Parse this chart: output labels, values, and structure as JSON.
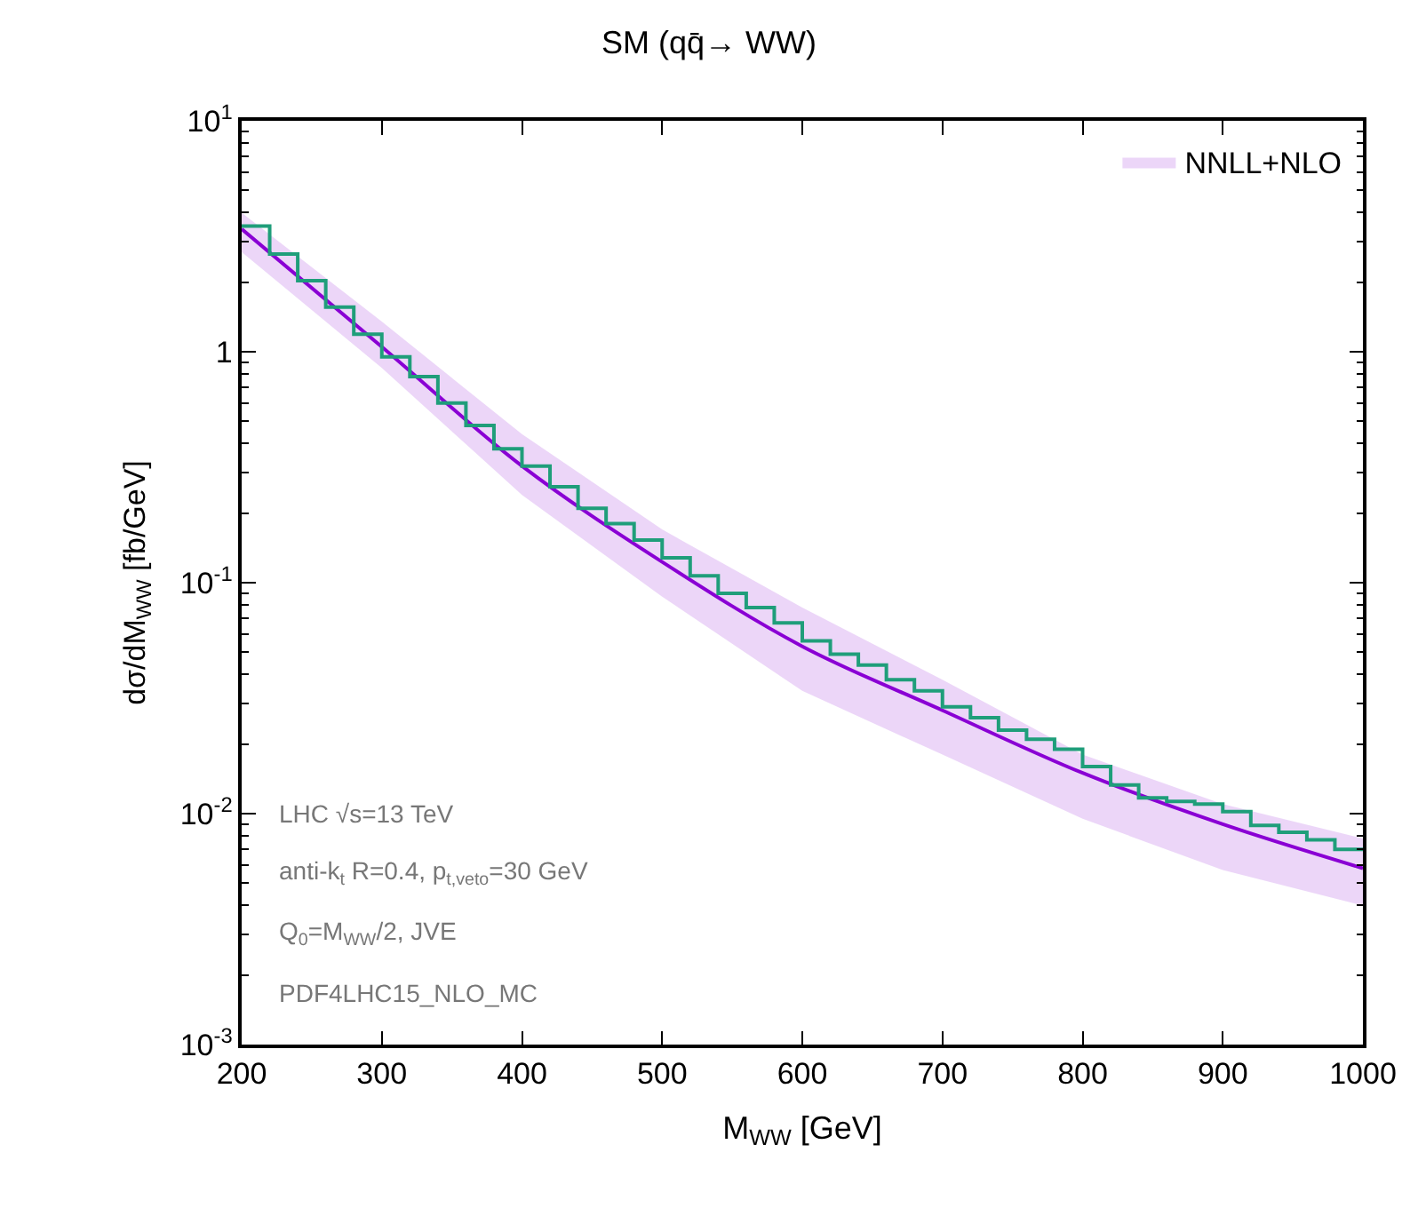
{
  "chart_data": {
    "type": "line",
    "title": "SM (qq̄→ WW)",
    "xlabel": "M$_{WW}$ [GeV]",
    "ylabel": "dσ/dM$_{WW}$ [fb/GeV]",
    "log": "y",
    "xlim": [
      200,
      1000
    ],
    "xticks": [
      200,
      300,
      400,
      500,
      600,
      700,
      800,
      900,
      1000
    ],
    "ylim": [
      0.001,
      10
    ],
    "yticks": [
      {
        "value": 0.001,
        "label": "10$^{-3}$"
      },
      {
        "value": 0.01,
        "label": "10$^{-2}$"
      },
      {
        "value": 0.1,
        "label": "10$^{-1}$"
      },
      {
        "value": 1,
        "label": "1"
      },
      {
        "value": 10,
        "label": "10$^{1}$"
      }
    ],
    "legend": "top right",
    "series": [
      {
        "name": "NNLL+NLO",
        "color": "#8a00d4",
        "x": [
          200,
          300,
          400,
          500,
          600,
          700,
          800,
          900,
          1000
        ],
        "values": [
          3.4,
          1.05,
          0.32,
          0.123,
          0.053,
          0.028,
          0.015,
          0.009,
          0.0058
        ],
        "lower": [
          2.7,
          0.85,
          0.24,
          0.087,
          0.034,
          0.018,
          0.0095,
          0.0057,
          0.004
        ],
        "upper": [
          4.0,
          1.35,
          0.44,
          0.17,
          0.078,
          0.038,
          0.018,
          0.011,
          0.0078
        ]
      },
      {
        "type": "step",
        "color": "#1f9e7a",
        "x": [
          200,
          220,
          240,
          260,
          280,
          300,
          320,
          340,
          360,
          380,
          400,
          420,
          440,
          460,
          480,
          500,
          520,
          540,
          560,
          580,
          600,
          620,
          640,
          660,
          680,
          700,
          720,
          740,
          760,
          780,
          800,
          820,
          840,
          860,
          880,
          900,
          920,
          940,
          960,
          980,
          1000
        ],
        "values": [
          3.5,
          2.65,
          2.03,
          1.56,
          1.19,
          0.95,
          0.78,
          0.6,
          0.48,
          0.38,
          0.32,
          0.26,
          0.21,
          0.18,
          0.153,
          0.128,
          0.107,
          0.09,
          0.078,
          0.067,
          0.056,
          0.049,
          0.044,
          0.038,
          0.034,
          0.029,
          0.026,
          0.023,
          0.021,
          0.019,
          0.016,
          0.0133,
          0.0117,
          0.0113,
          0.011,
          0.0102,
          0.0089,
          0.0083,
          0.0077,
          0.007,
          0.007
        ]
      }
    ],
    "annotations": [
      "LHC √s=13 TeV",
      "anti-k$_{t}$ R=0.4, p$_{t,veto}$=30 GeV",
      "Q$_{0}$=M$_{WW}$/2, JVE",
      "PDF4LHC15_NLO_MC"
    ]
  }
}
